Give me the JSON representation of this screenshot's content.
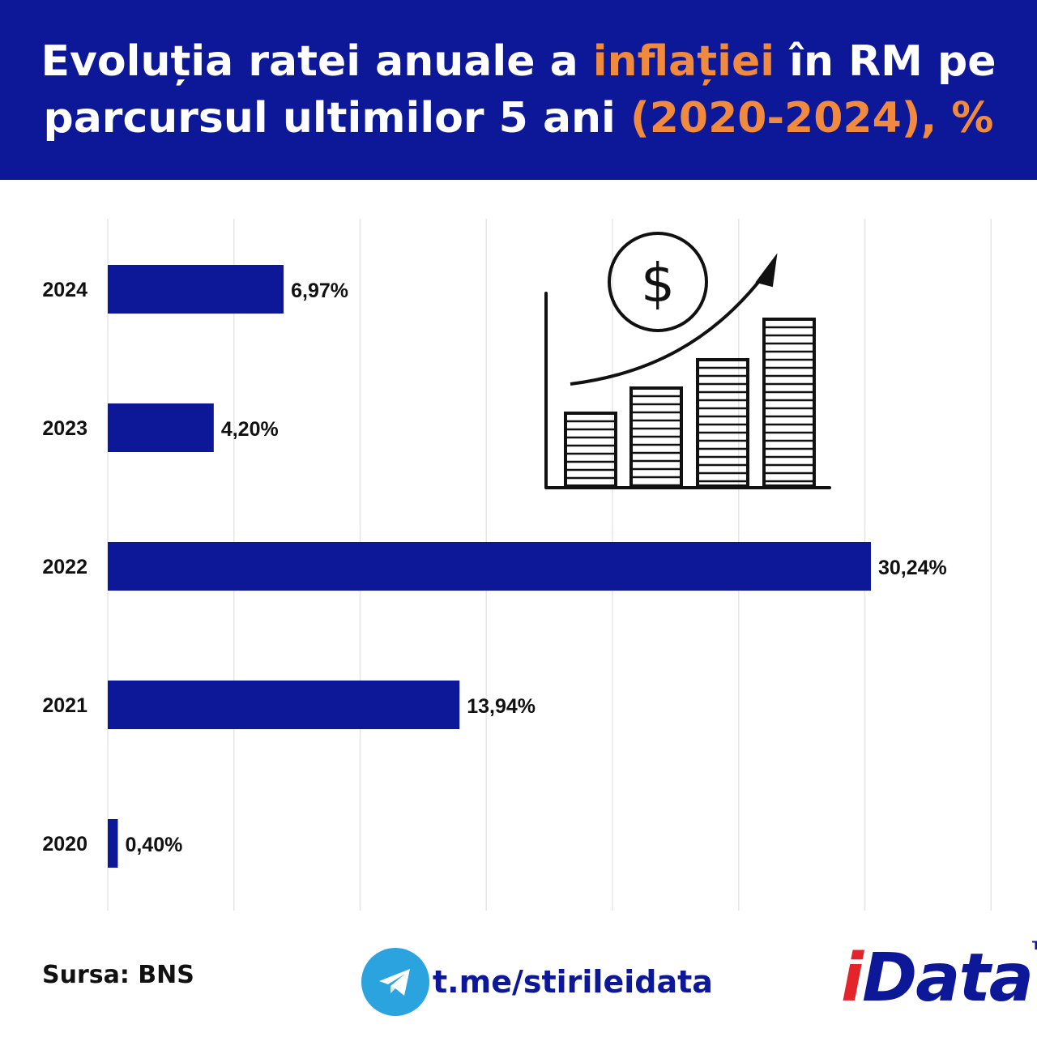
{
  "header": {
    "title_part1": "Evoluția ratei anuale a ",
    "title_accent1": "inflației",
    "title_part2": " în RM pe parcursul ultimilor 5 ani ",
    "title_accent2": "(2020-2024), %"
  },
  "colors": {
    "header_bg": "#0c1897",
    "accent": "#f08a3e",
    "bar": "#0c1897",
    "grid": "#e6e6e6"
  },
  "chart_data": {
    "type": "bar",
    "orientation": "horizontal",
    "categories": [
      "2024",
      "2023",
      "2022",
      "2021",
      "2020"
    ],
    "values": [
      6.97,
      4.2,
      30.24,
      13.94,
      0.4
    ],
    "value_labels": [
      "6,97%",
      "4,20%",
      "30,24%",
      "13,94%",
      "0,40%"
    ],
    "xlim": [
      0,
      35
    ],
    "grid": true,
    "title": "",
    "xlabel": "",
    "ylabel": ""
  },
  "illustration": {
    "icon": "growth-chart-dollar-icon",
    "symbol": "$"
  },
  "footer": {
    "source": "Sursa: BNS",
    "telegram_icon": "telegram-icon",
    "telegram_link": "t.me/stirileidata",
    "logo_i": "i",
    "logo_rest": "Data",
    "logo_tm": "TM"
  }
}
